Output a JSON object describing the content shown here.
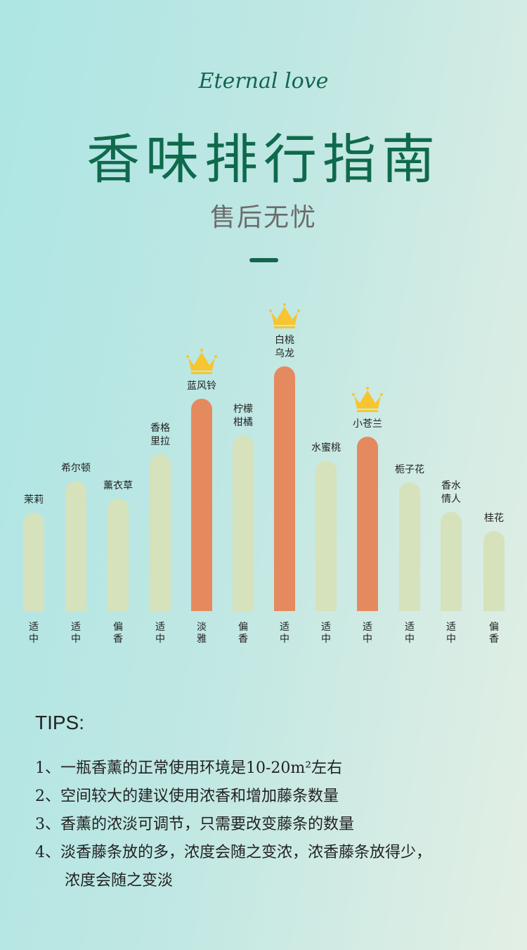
{
  "header": {
    "english": "Eternal love",
    "title": "香味排行指南",
    "subtitle": "售后无忧"
  },
  "chart_data": {
    "type": "bar",
    "categories": [
      "茉莉",
      "希尔顿",
      "薰衣草",
      "香格\n里拉",
      "蓝风铃",
      "柠檬\n柑橘",
      "白桃\n乌龙",
      "水蜜桃",
      "小苍兰",
      "栀子花",
      "香水\n情人",
      "桂花"
    ],
    "values": [
      140,
      185,
      160,
      223,
      302,
      250,
      348,
      214,
      248,
      183,
      141,
      114
    ],
    "intensity": [
      "适中",
      "适中",
      "偏香",
      "适中",
      "淡雅",
      "偏香",
      "适中",
      "适中",
      "适中",
      "适中",
      "适中",
      "偏香"
    ],
    "highlighted": [
      false,
      false,
      false,
      false,
      true,
      false,
      true,
      false,
      true,
      false,
      false,
      false
    ],
    "crowned": [
      false,
      false,
      false,
      false,
      true,
      false,
      true,
      false,
      true,
      false,
      false,
      false
    ],
    "colors": {
      "normal": "#d6e2bc",
      "highlight": "#e58a5e",
      "crown": "#f7c531"
    },
    "ylim": [
      0,
      348
    ]
  },
  "tips": {
    "heading": "TIPS:",
    "items": [
      "1、一瓶香薰的正常使用环境是10-20m²左右",
      "2、空间较大的建议使用浓香和增加藤条数量",
      "3、香薰的浓淡可调节，只需要改变藤条的数量",
      "4、淡香藤条放的多，浓度会随之变浓，浓香藤条放得少，",
      "浓度会随之变淡"
    ]
  }
}
